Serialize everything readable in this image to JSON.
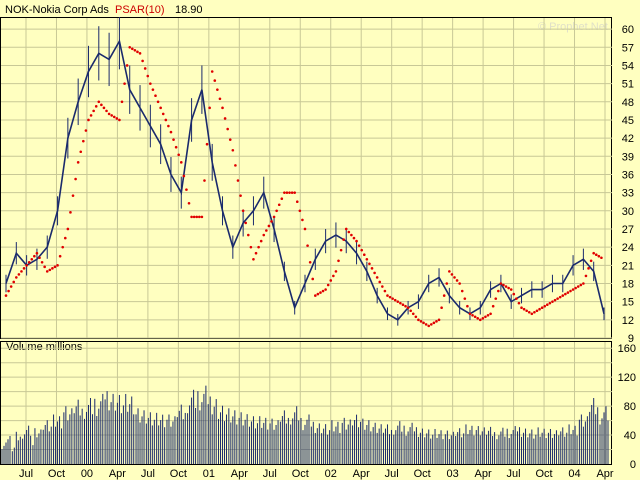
{
  "header": {
    "symbol_label": "NOK-Nokia Corp Ads",
    "indicator_label": "PSAR(10)",
    "indicator_value": "18.90",
    "watermark": "© Prophet.Net"
  },
  "volume_panel": {
    "label": "Volume  millions"
  },
  "colors": {
    "background": "#ffffc0",
    "grid": "#c8c896",
    "price": "#1a2a6c",
    "psar": "#e00000",
    "volume": "#1a2a6c",
    "header_psar": "#cc0000"
  },
  "chart_data": [
    {
      "type": "line",
      "name": "price",
      "x_tick_labels": [
        "Jul",
        "Oct",
        "00",
        "Apr",
        "Jul",
        "Oct",
        "01",
        "Apr",
        "Jul",
        "Oct",
        "02",
        "Apr",
        "Jul",
        "Oct",
        "03",
        "Apr",
        "Jul",
        "Oct",
        "04",
        "Apr"
      ],
      "y_ticks": [
        9,
        12,
        15,
        18,
        21,
        24,
        27,
        30,
        33,
        36,
        39,
        42,
        45,
        48,
        51,
        54,
        57,
        60
      ],
      "ylim": [
        9,
        62
      ],
      "grid": true,
      "x": [
        "1999-06",
        "1999-07",
        "1999-08",
        "1999-09",
        "1999-10",
        "1999-11",
        "1999-12",
        "2000-01",
        "2000-02",
        "2000-03",
        "2000-04",
        "2000-05",
        "2000-06",
        "2000-07",
        "2000-08",
        "2000-09",
        "2000-10",
        "2000-11",
        "2000-12",
        "2001-01",
        "2001-02",
        "2001-03",
        "2001-04",
        "2001-05",
        "2001-06",
        "2001-07",
        "2001-08",
        "2001-09",
        "2001-10",
        "2001-11",
        "2001-12",
        "2002-01",
        "2002-02",
        "2002-03",
        "2002-04",
        "2002-05",
        "2002-06",
        "2002-07",
        "2002-08",
        "2002-09",
        "2002-10",
        "2002-11",
        "2002-12",
        "2003-01",
        "2003-02",
        "2003-03",
        "2003-04",
        "2003-05",
        "2003-06",
        "2003-07",
        "2003-08",
        "2003-09",
        "2003-10",
        "2003-11",
        "2003-12",
        "2004-01",
        "2004-02",
        "2004-03",
        "2004-04"
      ],
      "series": [
        {
          "values": [
            18,
            23,
            21,
            22,
            24,
            30,
            42,
            48,
            53,
            56,
            55,
            58,
            50,
            47,
            44,
            41,
            36,
            33,
            45,
            50,
            38,
            30,
            24,
            28,
            30,
            33,
            27,
            20,
            14,
            18,
            22,
            25,
            26,
            25,
            23,
            20,
            16,
            13,
            12,
            14,
            15,
            18,
            19,
            16,
            14,
            13,
            14,
            17,
            18,
            15,
            16,
            17,
            17,
            18,
            18,
            21,
            22,
            20,
            13
          ]
        },
        {
          "values": [
            16,
            19,
            21,
            23,
            20,
            21,
            27,
            38,
            45,
            48,
            46,
            45,
            57,
            56,
            51,
            47,
            43,
            38,
            29,
            29,
            53,
            47,
            40,
            30,
            22,
            26,
            29,
            33,
            33,
            27,
            16,
            17,
            20,
            27,
            25,
            22,
            19,
            16,
            15,
            14,
            12,
            11,
            12,
            20,
            18,
            13,
            12,
            13,
            18,
            17,
            14,
            13,
            14,
            15,
            16,
            17,
            18,
            23,
            22
          ]
        }
      ]
    },
    {
      "type": "bar",
      "name": "volume",
      "ylabel": "Volume  millions",
      "y_ticks": [
        0,
        20,
        40,
        60,
        80,
        100,
        120,
        140,
        160
      ],
      "ylim": [
        0,
        170
      ],
      "values": [
        38,
        42,
        50,
        45,
        55,
        60,
        70,
        78,
        80,
        85,
        95,
        90,
        88,
        70,
        65,
        62,
        60,
        72,
        90,
        95,
        88,
        76,
        70,
        65,
        60,
        58,
        55,
        65,
        70,
        60,
        55,
        52,
        55,
        58,
        62,
        55,
        50,
        48,
        52,
        50,
        48,
        45,
        44,
        42,
        45,
        48,
        46,
        45,
        44,
        46,
        48,
        45,
        46,
        44,
        46,
        48,
        60,
        80,
        70
      ]
    }
  ]
}
